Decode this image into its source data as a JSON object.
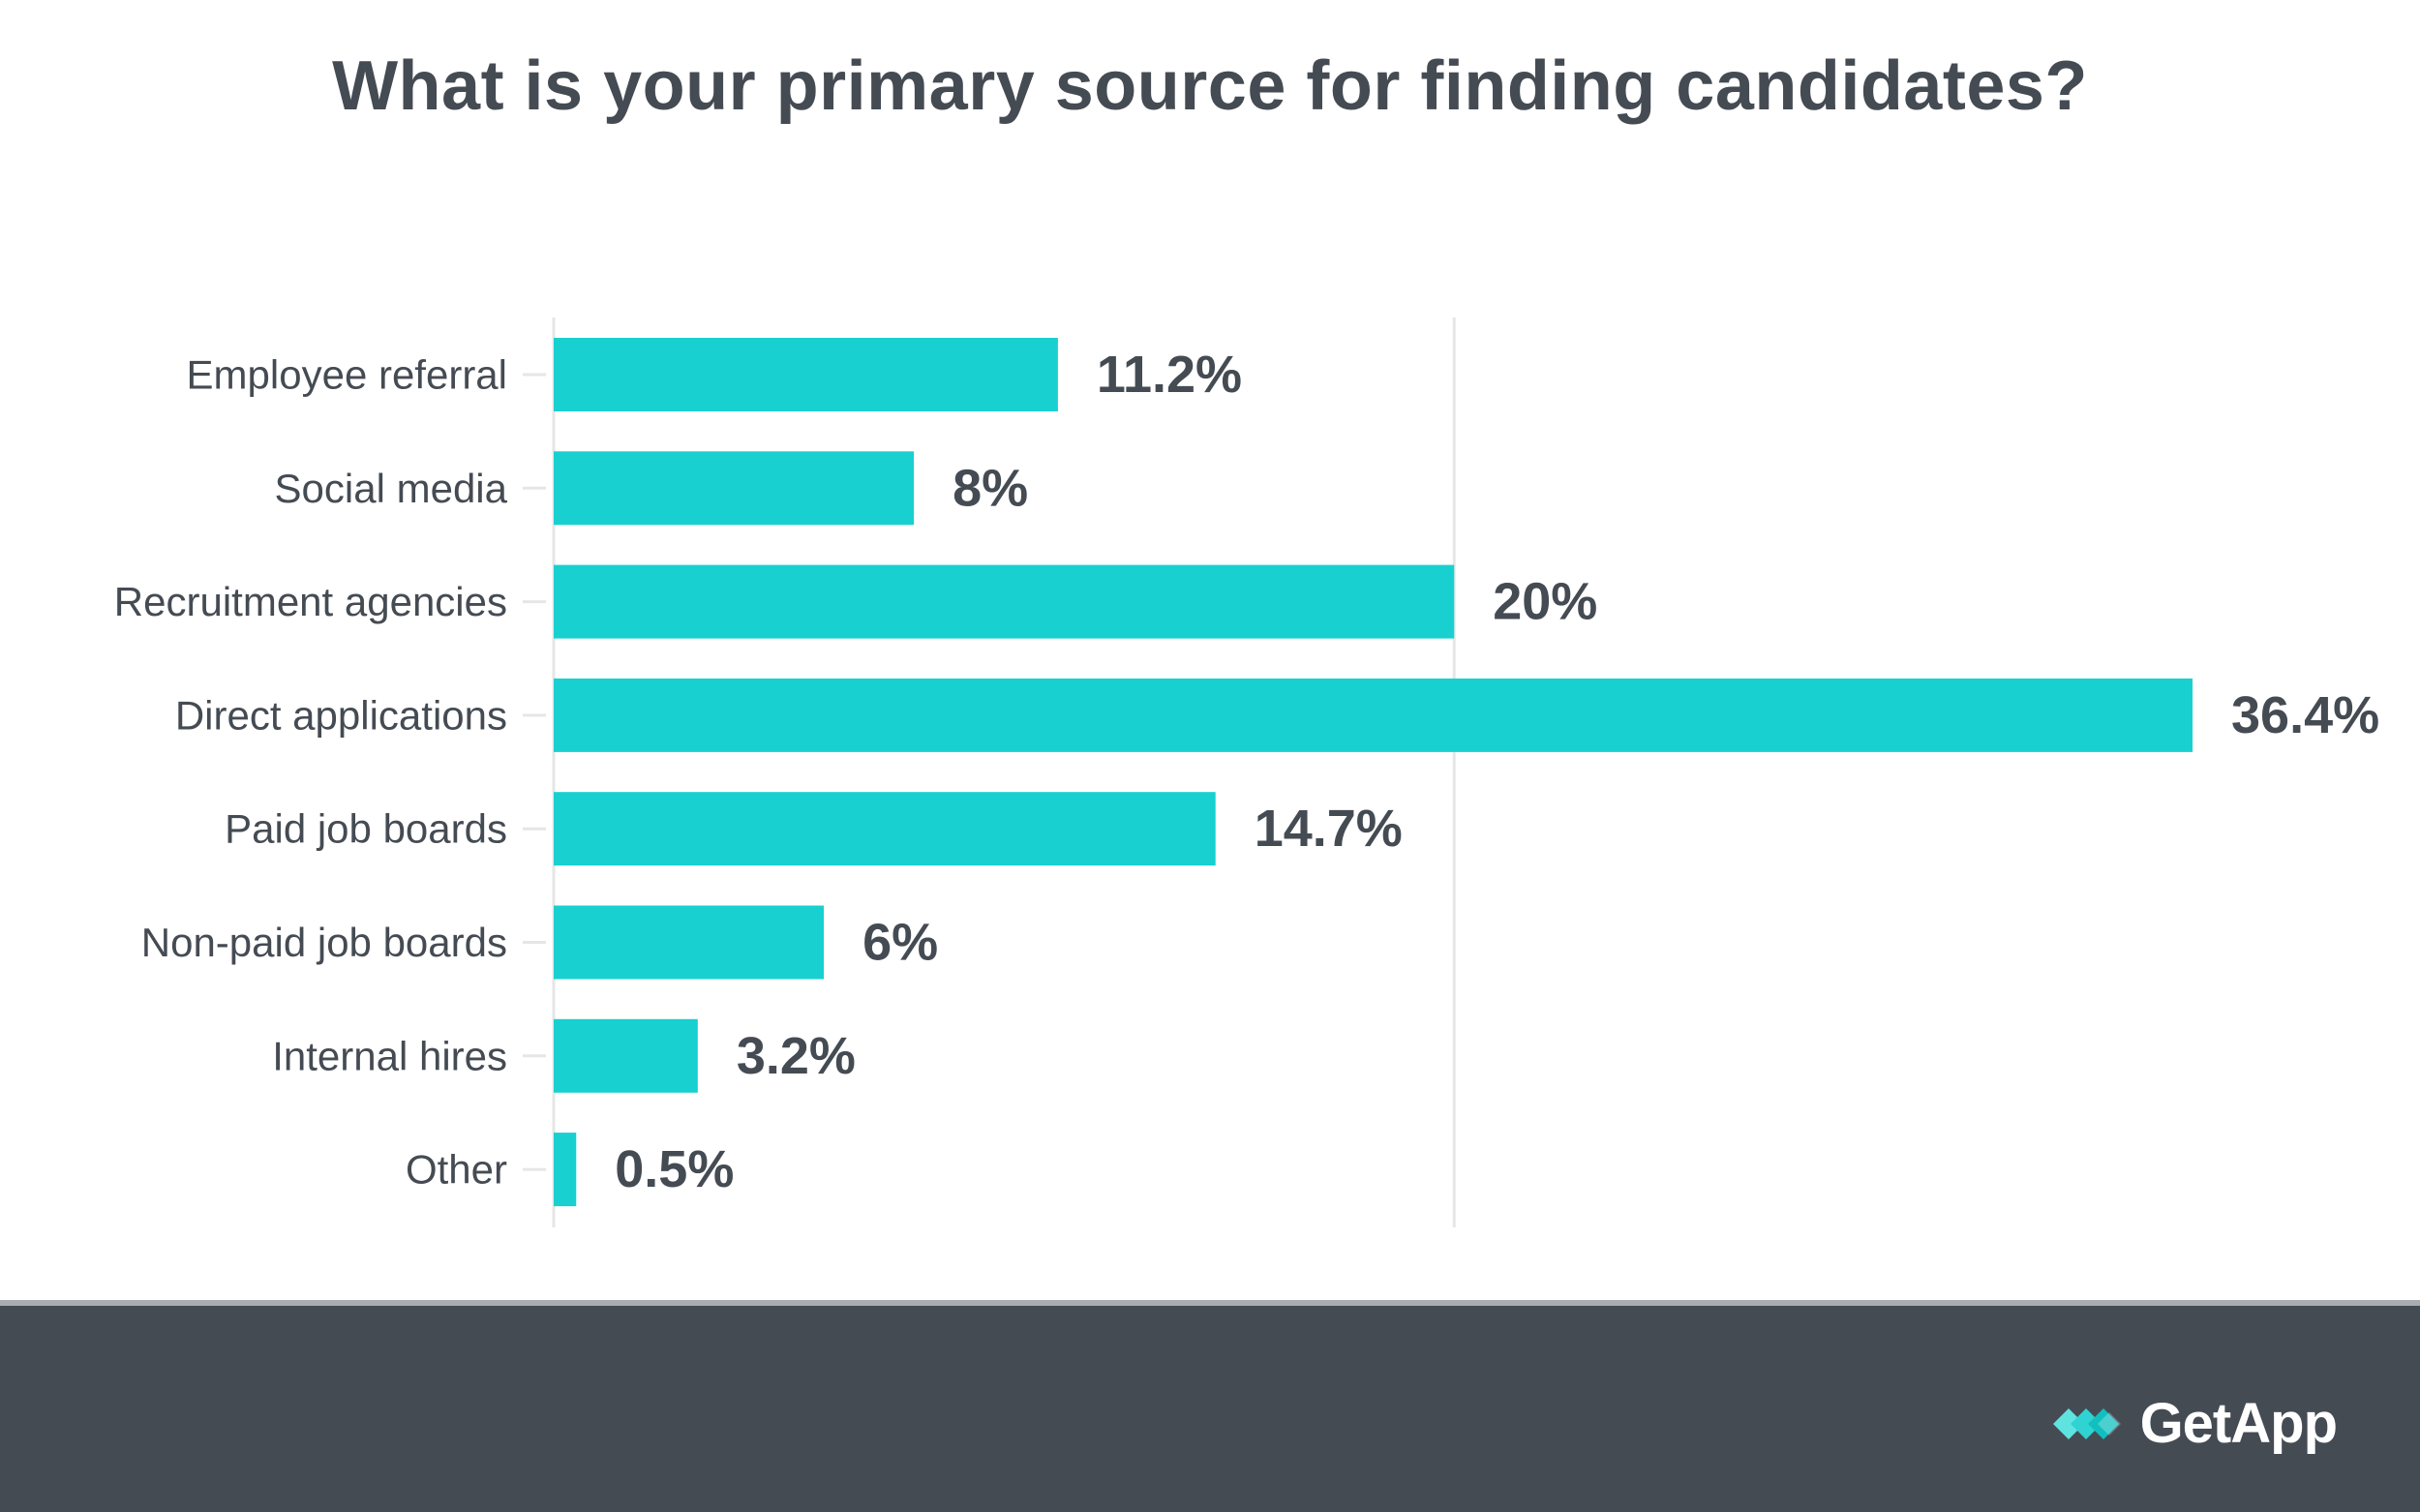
{
  "colors": {
    "bar": "#19d0d0",
    "text": "#454b53",
    "grid": "#e6e6e6",
    "footer_bg": "#454b53",
    "footer_border": "#a9adb1",
    "brand_text": "#ffffff"
  },
  "footer": {
    "brand": "GetApp",
    "logo_icon": "getapp-logo-icon"
  },
  "chart_data": {
    "type": "bar",
    "orientation": "horizontal",
    "title": "What is your primary source for finding candidates?",
    "xlabel": "",
    "ylabel": "",
    "xlim": [
      0,
      36.4
    ],
    "grid": true,
    "gridlines_at": [
      20
    ],
    "legend": "none",
    "categories": [
      "Employee referral",
      "Social media",
      "Recruitment agencies",
      "Direct applications",
      "Paid job boards",
      "Non-paid job boards",
      "Internal hires",
      "Other"
    ],
    "values": [
      11.2,
      8,
      20,
      36.4,
      14.7,
      6,
      3.2,
      0.5
    ],
    "value_labels": [
      "11.2%",
      "8%",
      "20%",
      "36.4%",
      "14.7%",
      "6%",
      "3.2%",
      "0.5%"
    ]
  }
}
